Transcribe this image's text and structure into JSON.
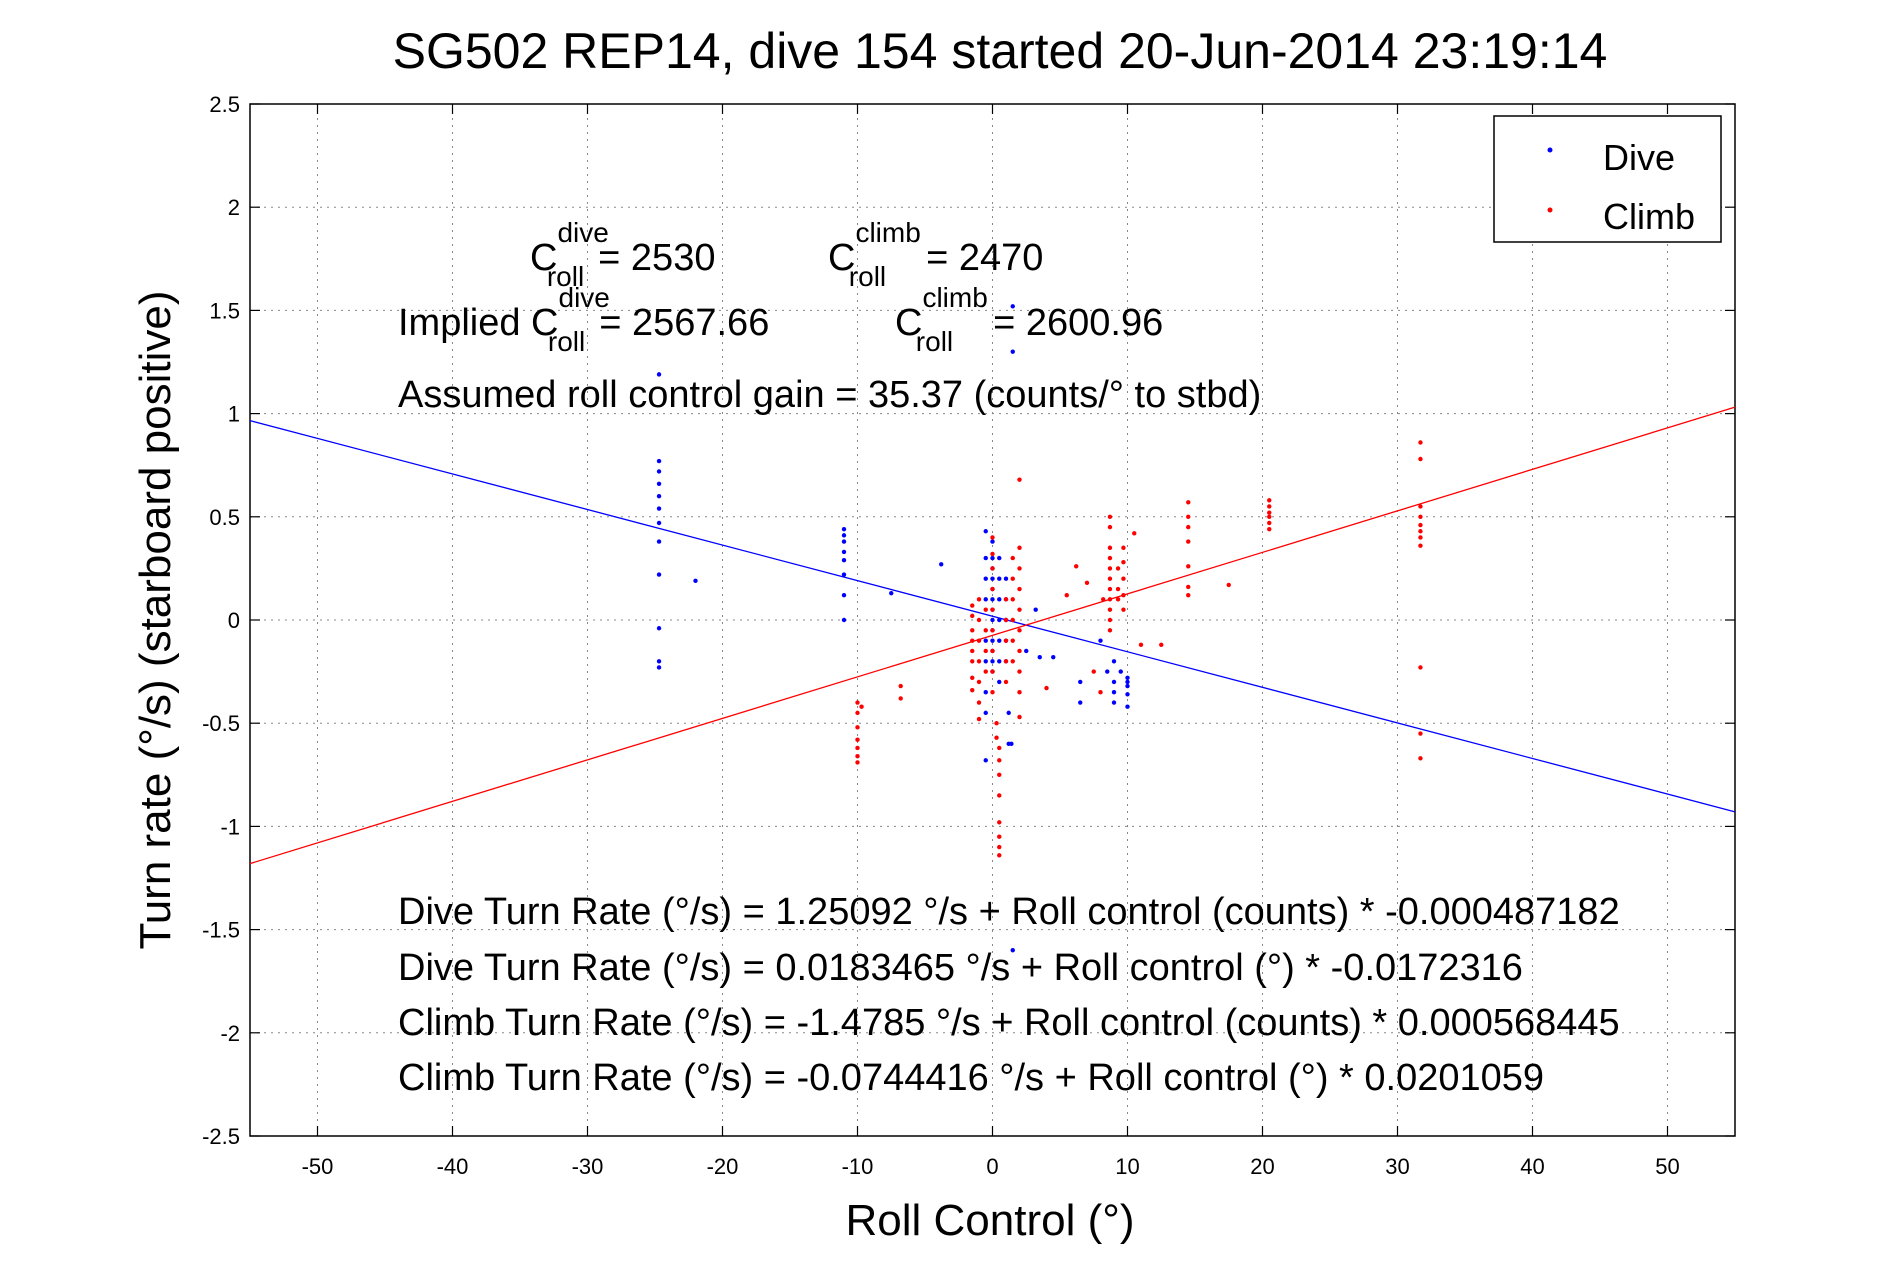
{
  "chart_data": {
    "type": "scatter",
    "title": "SG502 REP14, dive 154 started 20-Jun-2014 23:19:14",
    "xlabel": "Roll Control (°)",
    "ylabel": "Turn rate (°/s)  (starboard positive)",
    "xlim": [
      -55,
      55
    ],
    "ylim": [
      -2.5,
      2.5
    ],
    "xticks": [
      "-50",
      "-40",
      "-30",
      "-20",
      "-10",
      "0",
      "10",
      "20",
      "30",
      "40",
      "50"
    ],
    "yticks": [
      "2.5",
      "2",
      "1.5",
      "1",
      "0.5",
      "0",
      "-0.5",
      "-1",
      "-1.5",
      "-2",
      "-2.5"
    ],
    "grid": true,
    "legend_position": "top-right",
    "series": [
      {
        "name": "Dive",
        "color": "#0000ff",
        "fit": {
          "intercept": 0.0183465,
          "slope": -0.0172316
        },
        "points": [
          [
            -24.7,
            0.77
          ],
          [
            -24.7,
            0.72
          ],
          [
            -24.7,
            0.66
          ],
          [
            -24.7,
            0.6
          ],
          [
            -24.7,
            0.54
          ],
          [
            -24.7,
            0.47
          ],
          [
            -24.7,
            0.38
          ],
          [
            -24.7,
            0.22
          ],
          [
            -24.7,
            -0.04
          ],
          [
            -24.7,
            -0.2
          ],
          [
            -24.7,
            -0.23
          ],
          [
            -24.7,
            1.19
          ],
          [
            -22,
            0.19
          ],
          [
            -11,
            0.44
          ],
          [
            -11,
            0.41
          ],
          [
            -11,
            0.38
          ],
          [
            -11,
            0.33
          ],
          [
            -11,
            0.29
          ],
          [
            -11,
            0.22
          ],
          [
            -11,
            0.12
          ],
          [
            -11,
            0.0
          ],
          [
            -7.5,
            0.13
          ],
          [
            -3.8,
            0.27
          ],
          [
            -0.5,
            0.43
          ],
          [
            -0.5,
            0.3
          ],
          [
            -0.5,
            0.2
          ],
          [
            -0.5,
            0.1
          ],
          [
            -0.5,
            -0.1
          ],
          [
            -0.5,
            -0.2
          ],
          [
            -0.5,
            -0.35
          ],
          [
            -0.5,
            -0.45
          ],
          [
            -0.5,
            -0.68
          ],
          [
            0,
            0.38
          ],
          [
            0,
            0.3
          ],
          [
            0,
            0.25
          ],
          [
            0,
            0.2
          ],
          [
            0,
            0.15
          ],
          [
            0,
            0.1
          ],
          [
            0,
            0.05
          ],
          [
            0,
            0.0
          ],
          [
            0,
            -0.05
          ],
          [
            0,
            -0.1
          ],
          [
            0,
            -0.15
          ],
          [
            0,
            -0.2
          ],
          [
            0,
            -0.25
          ],
          [
            0.5,
            0.3
          ],
          [
            0.5,
            0.2
          ],
          [
            0.5,
            0.1
          ],
          [
            0.5,
            0.0
          ],
          [
            0.5,
            -0.1
          ],
          [
            0.5,
            -0.2
          ],
          [
            0.5,
            -0.3
          ],
          [
            1,
            0.2
          ],
          [
            1,
            0.1
          ],
          [
            1,
            0.0
          ],
          [
            1,
            -0.1
          ],
          [
            1,
            -0.2
          ],
          [
            1.2,
            -0.45
          ],
          [
            1.2,
            -0.6
          ],
          [
            1.4,
            -0.6
          ],
          [
            1.5,
            1.52
          ],
          [
            1.5,
            1.3
          ],
          [
            1.5,
            -1.6
          ],
          [
            2.5,
            -0.15
          ],
          [
            3.2,
            0.05
          ],
          [
            3.5,
            -0.18
          ],
          [
            4.5,
            -0.18
          ],
          [
            6.5,
            -0.3
          ],
          [
            6.5,
            -0.4
          ],
          [
            8,
            -0.1
          ],
          [
            8.5,
            -0.25
          ],
          [
            9,
            -0.2
          ],
          [
            9,
            -0.3
          ],
          [
            9,
            -0.35
          ],
          [
            9,
            -0.4
          ],
          [
            9.5,
            -0.25
          ],
          [
            10,
            -0.28
          ],
          [
            10,
            -0.32
          ],
          [
            10,
            -0.36
          ],
          [
            10,
            -0.42
          ],
          [
            10,
            -0.3
          ]
        ]
      },
      {
        "name": "Climb",
        "color": "#ff0000",
        "fit": {
          "intercept": -0.0744416,
          "slope": 0.0201059
        },
        "points": [
          [
            -10,
            -0.4
          ],
          [
            -10,
            -0.45
          ],
          [
            -10,
            -0.52
          ],
          [
            -10,
            -0.58
          ],
          [
            -10,
            -0.62
          ],
          [
            -10,
            -0.66
          ],
          [
            -10,
            -0.69
          ],
          [
            -9.7,
            -0.42
          ],
          [
            -6.8,
            -0.32
          ],
          [
            -6.8,
            -0.38
          ],
          [
            -1.5,
            0.07
          ],
          [
            -1.5,
            0.02
          ],
          [
            -1.5,
            -0.05
          ],
          [
            -1.5,
            -0.1
          ],
          [
            -1.5,
            -0.15
          ],
          [
            -1.5,
            -0.2
          ],
          [
            -1.5,
            -0.28
          ],
          [
            -1.5,
            -0.34
          ],
          [
            -1,
            0.1
          ],
          [
            -1,
            0.0
          ],
          [
            -1,
            -0.1
          ],
          [
            -1,
            -0.2
          ],
          [
            -1,
            -0.3
          ],
          [
            -1,
            -0.4
          ],
          [
            -1,
            -0.48
          ],
          [
            -0.5,
            0.05
          ],
          [
            -0.5,
            -0.05
          ],
          [
            -0.5,
            -0.15
          ],
          [
            -0.5,
            -0.25
          ],
          [
            0,
            0.4
          ],
          [
            0,
            0.32
          ],
          [
            0,
            0.25
          ],
          [
            0,
            0.15
          ],
          [
            0,
            0.05
          ],
          [
            0,
            -0.05
          ],
          [
            0,
            -0.15
          ],
          [
            0,
            -0.25
          ],
          [
            0,
            -0.35
          ],
          [
            0.3,
            -0.5
          ],
          [
            0.3,
            -0.57
          ],
          [
            0.5,
            -0.62
          ],
          [
            0.5,
            -0.68
          ],
          [
            0.5,
            -0.75
          ],
          [
            0.5,
            -0.85
          ],
          [
            0.5,
            -0.98
          ],
          [
            0.5,
            -1.05
          ],
          [
            0.5,
            -1.1
          ],
          [
            0.5,
            -1.14
          ],
          [
            1,
            0.1
          ],
          [
            1,
            0.0
          ],
          [
            1,
            -0.1
          ],
          [
            1,
            -0.2
          ],
          [
            1,
            -0.3
          ],
          [
            1.5,
            0.3
          ],
          [
            1.5,
            0.2
          ],
          [
            1.5,
            0.1
          ],
          [
            1.5,
            0.0
          ],
          [
            1.5,
            -0.1
          ],
          [
            1.5,
            -0.2
          ],
          [
            2,
            0.68
          ],
          [
            2,
            0.35
          ],
          [
            2,
            0.25
          ],
          [
            2,
            0.15
          ],
          [
            2,
            0.05
          ],
          [
            2,
            -0.05
          ],
          [
            2,
            -0.15
          ],
          [
            2,
            -0.25
          ],
          [
            2,
            -0.35
          ],
          [
            2,
            -0.47
          ],
          [
            4,
            -0.33
          ],
          [
            5.5,
            0.12
          ],
          [
            6.2,
            0.26
          ],
          [
            7,
            0.18
          ],
          [
            7.5,
            -0.25
          ],
          [
            8,
            -0.35
          ],
          [
            8.2,
            0.1
          ],
          [
            8.7,
            0.5
          ],
          [
            8.7,
            0.45
          ],
          [
            8.7,
            0.35
          ],
          [
            8.7,
            0.3
          ],
          [
            8.7,
            0.25
          ],
          [
            8.7,
            0.2
          ],
          [
            8.7,
            0.15
          ],
          [
            8.7,
            0.1
          ],
          [
            8.7,
            0.05
          ],
          [
            8.7,
            0.0
          ],
          [
            8.7,
            -0.05
          ],
          [
            9.3,
            0.25
          ],
          [
            9.3,
            0.15
          ],
          [
            9.3,
            0.1
          ],
          [
            9.7,
            0.35
          ],
          [
            9.7,
            0.28
          ],
          [
            9.7,
            0.2
          ],
          [
            9.7,
            0.12
          ],
          [
            9.7,
            0.05
          ],
          [
            10.5,
            0.42
          ],
          [
            11,
            -0.12
          ],
          [
            12.5,
            -0.12
          ],
          [
            14.5,
            0.57
          ],
          [
            14.5,
            0.5
          ],
          [
            14.5,
            0.45
          ],
          [
            14.5,
            0.38
          ],
          [
            14.5,
            0.26
          ],
          [
            14.5,
            0.16
          ],
          [
            14.5,
            0.12
          ],
          [
            17.5,
            0.17
          ],
          [
            20.5,
            0.58
          ],
          [
            20.5,
            0.55
          ],
          [
            20.5,
            0.52
          ],
          [
            20.5,
            0.5
          ],
          [
            20.5,
            0.47
          ],
          [
            20.5,
            0.44
          ],
          [
            31.7,
            0.86
          ],
          [
            31.7,
            0.78
          ],
          [
            31.7,
            0.55
          ],
          [
            31.7,
            0.5
          ],
          [
            31.7,
            0.46
          ],
          [
            31.7,
            0.43
          ],
          [
            31.7,
            0.4
          ],
          [
            31.7,
            0.36
          ],
          [
            31.7,
            -0.23
          ],
          [
            31.7,
            -0.55
          ],
          [
            31.7,
            -0.67
          ]
        ]
      }
    ],
    "annotations": {
      "c_dive_value": "= 2530",
      "c_climb_value": "= 2470",
      "implied_prefix": "Implied C",
      "implied_dive_value": "= 2567.66",
      "implied_climb_value": "= 2600.96",
      "c_letter": "C",
      "sup_dive": "dive",
      "sup_climb": "climb",
      "sub_roll": "roll",
      "gain": "Assumed roll control gain = 35.37 (counts/° to stbd)",
      "eq1": "Dive Turn Rate (°/s) = 1.25092 °/s + Roll control (counts) * -0.000487182",
      "eq2": "Dive Turn Rate (°/s) = 0.0183465 °/s + Roll control (°) * -0.0172316",
      "eq3": "Climb Turn Rate (°/s) = -1.4785 °/s + Roll control (counts) * 0.000568445",
      "eq4": "Climb Turn Rate (°/s) = -0.0744416 °/s + Roll control (°) * 0.0201059"
    }
  }
}
